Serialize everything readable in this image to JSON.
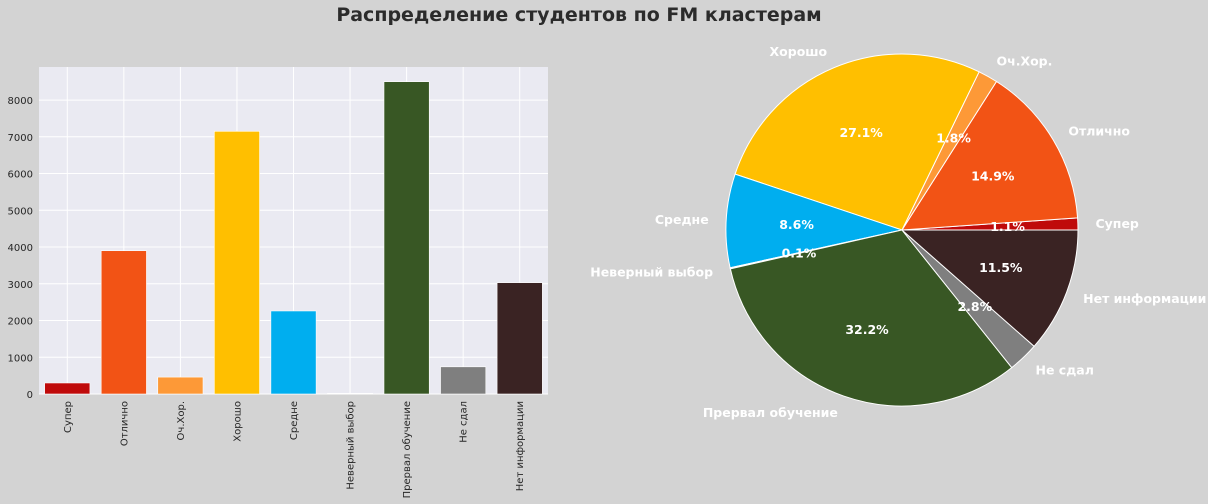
{
  "title": "Распределение студентов по FM кластерам",
  "chart_data": [
    {
      "type": "bar",
      "categories": [
        "Супер",
        "Отлично",
        "Оч.Хор.",
        "Хорошо",
        "Средне",
        "Неверный выбор",
        "Прервал обучение",
        "Не сдал",
        "Нет информации"
      ],
      "values": [
        300,
        3900,
        460,
        7150,
        2260,
        20,
        8500,
        740,
        3030
      ],
      "colors": [
        "#bf0a0a",
        "#f25315",
        "#fd9937",
        "#ffbf00",
        "#00aeef",
        "#ffffff",
        "#385724",
        "#7f7f7f",
        "#3a2323"
      ],
      "yticks": [
        0,
        1000,
        2000,
        3000,
        4000,
        5000,
        6000,
        7000,
        8000
      ],
      "ylim": [
        0,
        8900
      ],
      "grid": true,
      "xlabel": "",
      "ylabel": ""
    },
    {
      "type": "pie",
      "labels": [
        "Супер",
        "Отлично",
        "Оч.Хор.",
        "Хорошо",
        "Средне",
        "Неверный выбор",
        "Прервал обучение",
        "Не сдал",
        "Нет информации"
      ],
      "values": [
        1.1,
        14.9,
        1.8,
        27.1,
        8.6,
        0.1,
        32.2,
        2.8,
        11.5
      ],
      "percent_labels": [
        "1.1%",
        "14.9%",
        "1.8%",
        "27.1%",
        "8.6%",
        "0.1%",
        "32.2%",
        "2.8%",
        "11.5%"
      ],
      "colors": [
        "#bf0a0a",
        "#f25315",
        "#fd9937",
        "#ffbf00",
        "#00aeef",
        "#ffffff",
        "#385724",
        "#7f7f7f",
        "#3a2323"
      ]
    }
  ]
}
